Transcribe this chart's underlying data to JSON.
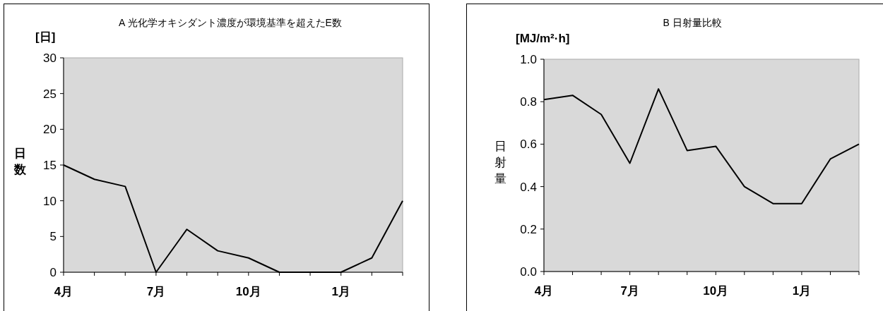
{
  "chart_data": [
    {
      "type": "line",
      "title": "A 光化学オキシダント濃度が環境基準を超えたE数",
      "ylabel": "日数",
      "annotations": [
        "[日]"
      ],
      "categories": [
        "4月",
        null,
        null,
        "7月",
        null,
        null,
        "10月",
        null,
        null,
        "1月",
        null,
        null
      ],
      "series": [
        {
          "color": "#000000",
          "values": [
            15,
            13,
            12,
            0,
            6,
            3,
            2,
            0,
            0,
            0,
            2,
            10
          ]
        }
      ],
      "ylim": [
        0,
        30
      ],
      "yticks": [
        0,
        5,
        10,
        15,
        20,
        25,
        30
      ]
    },
    {
      "type": "line",
      "title": "B 日射量比較",
      "ylabel": "日射量",
      "annotations": [
        "[MJ/m²·h]"
      ],
      "categories": [
        "4月",
        null,
        null,
        "7月",
        null,
        null,
        "10月",
        null,
        null,
        "1月",
        null,
        null
      ],
      "series": [
        {
          "color": "#000000",
          "values": [
            0.81,
            0.83,
            0.74,
            0.51,
            0.86,
            0.57,
            0.59,
            0.4,
            0.32,
            0.32,
            0.53,
            0.6
          ]
        }
      ],
      "ylim": [
        0,
        1
      ],
      "yticks": [
        {
          "value": 0,
          "label": "0.0"
        },
        0.2,
        0.4,
        0.6,
        0.8,
        {
          "value": 1,
          "label": "1.0"
        }
      ]
    }
  ]
}
